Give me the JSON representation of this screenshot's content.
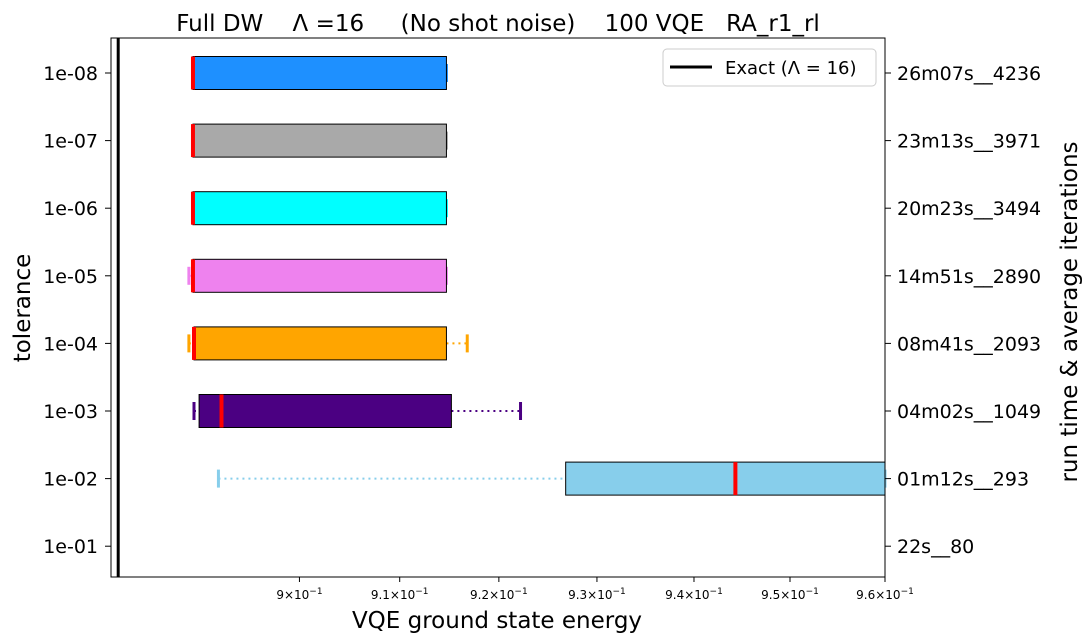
{
  "chart_data": {
    "type": "box",
    "orientation": "horizontal",
    "title": "Full DW    Λ =16     (No shot noise)    100 VQE   RA_r1_rl",
    "xlabel": "VQE ground state energy",
    "ylabel": "tolerance",
    "ylabel_right": "run time & average iterations",
    "xscale": "log",
    "xlim": [
      0.8815,
      0.96
    ],
    "xticks": [
      {
        "value": 0.9,
        "mantissa": "9",
        "exp": "−1"
      },
      {
        "value": 0.91,
        "mantissa": "9.1",
        "exp": "−1"
      },
      {
        "value": 0.92,
        "mantissa": "9.2",
        "exp": "−1"
      },
      {
        "value": 0.93,
        "mantissa": "9.3",
        "exp": "−1"
      },
      {
        "value": 0.94,
        "mantissa": "9.4",
        "exp": "−1"
      },
      {
        "value": 0.95,
        "mantissa": "9.5",
        "exp": "−1"
      },
      {
        "value": 0.96,
        "mantissa": "9.6",
        "exp": "−1"
      }
    ],
    "categories": [
      "1e-08",
      "1e-07",
      "1e-06",
      "1e-05",
      "1e-04",
      "1e-03",
      "1e-02",
      "1e-01"
    ],
    "right_labels": [
      "26m07s__4236",
      "23m13s__3971",
      "20m23s__3494",
      "14m51s__2890",
      "08m41s__2093",
      "04m02s__1049",
      "01m12s__293",
      "22s__80"
    ],
    "exact_line": {
      "value": 0.8822,
      "label": "Exact (Λ = 16)",
      "color": "#000000"
    },
    "legend_position": "top-right",
    "grid": false,
    "series": [
      {
        "category": "1e-08",
        "color": "#1e90ff",
        "whisker_low": 0.8895,
        "q1": 0.8895,
        "median": 0.8895,
        "q3": 0.9147,
        "whisker_high": 0.9147
      },
      {
        "category": "1e-07",
        "color": "#a9a9a9",
        "whisker_low": 0.8895,
        "q1": 0.8895,
        "median": 0.8895,
        "q3": 0.9147,
        "whisker_high": 0.9147
      },
      {
        "category": "1e-06",
        "color": "#00ffff",
        "whisker_low": 0.8895,
        "q1": 0.8895,
        "median": 0.8895,
        "q3": 0.9147,
        "whisker_high": 0.9147
      },
      {
        "category": "1e-05",
        "color": "#ee82ee",
        "whisker_low": 0.8891,
        "q1": 0.8895,
        "median": 0.8895,
        "q3": 0.9147,
        "whisker_high": 0.9147
      },
      {
        "category": "1e-04",
        "color": "#ffa500",
        "whisker_low": 0.8891,
        "q1": 0.8896,
        "median": 0.8896,
        "q3": 0.9147,
        "whisker_high": 0.9168
      },
      {
        "category": "1e-03",
        "color": "#4b0082",
        "whisker_low": 0.8896,
        "q1": 0.8901,
        "median": 0.8923,
        "q3": 0.9152,
        "whisker_high": 0.9222
      },
      {
        "category": "1e-02",
        "color": "#87ceeb",
        "whisker_low": 0.892,
        "q1": 0.9268,
        "median": 0.9443,
        "q3": 0.96,
        "whisker_high": 0.96
      }
    ],
    "median_color": "#ff0000"
  }
}
